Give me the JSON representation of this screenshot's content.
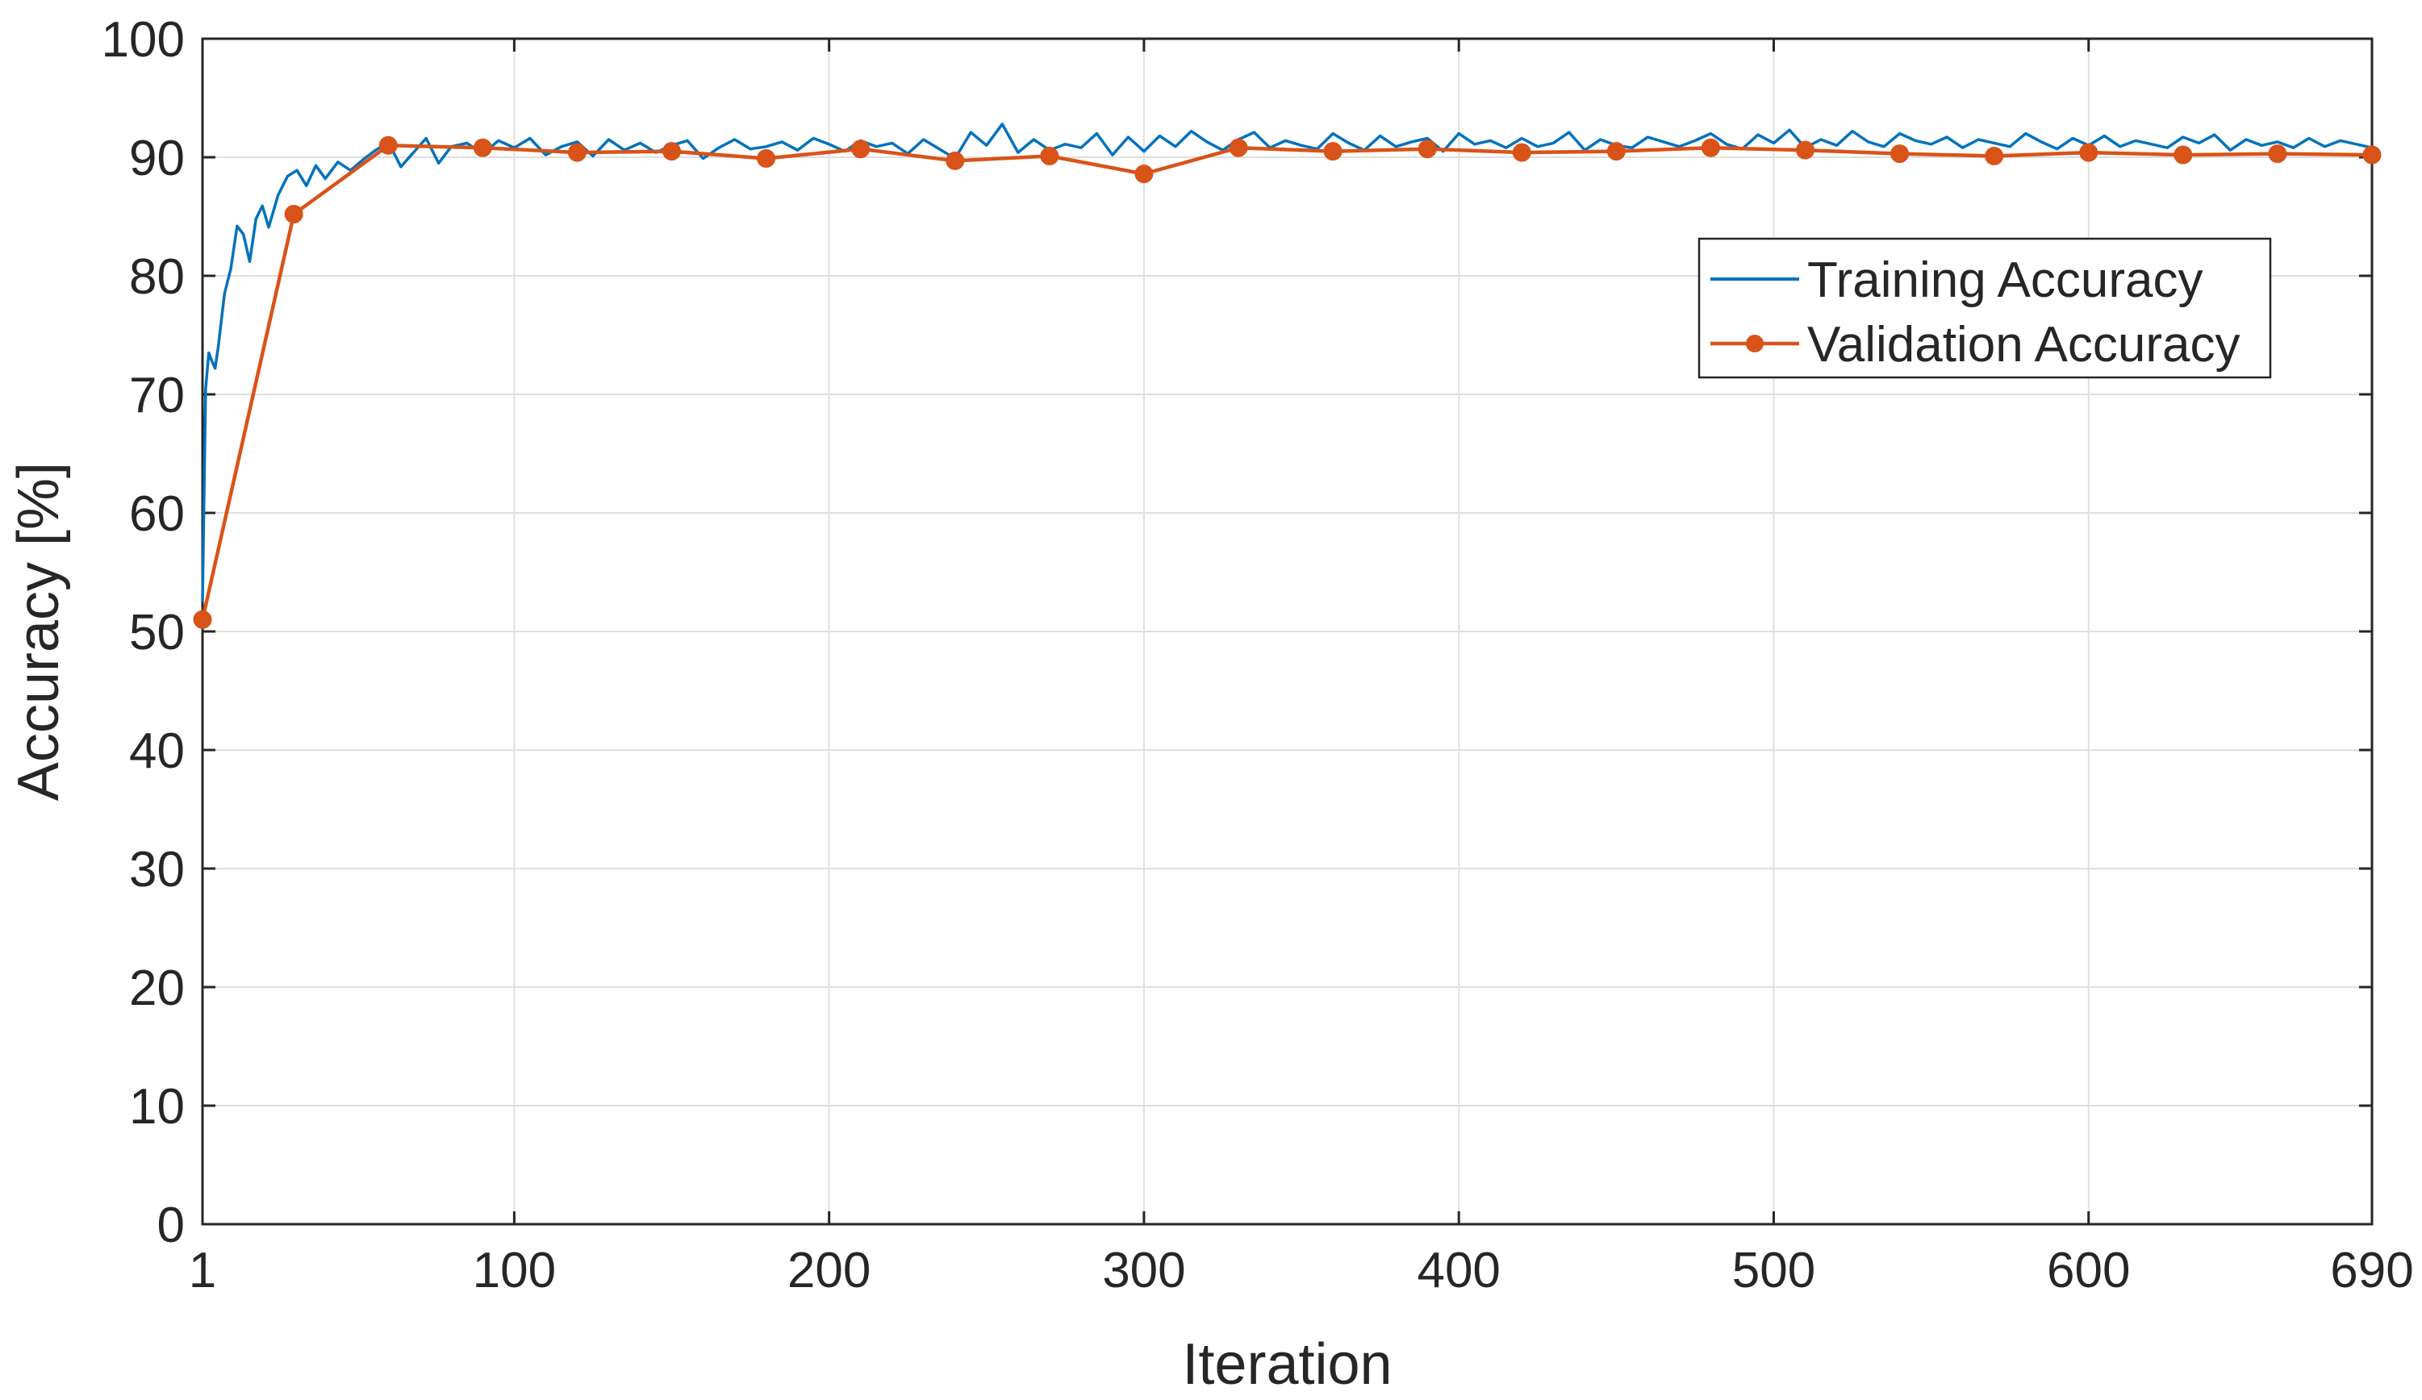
{
  "chart_data": {
    "type": "line",
    "xlabel": "Iteration",
    "ylabel": "Accuracy [%]",
    "xlim": [
      1,
      690
    ],
    "ylim": [
      0,
      100
    ],
    "x_ticks": [
      1,
      100,
      200,
      300,
      400,
      500,
      600,
      690
    ],
    "y_ticks": [
      0,
      10,
      20,
      30,
      40,
      50,
      60,
      70,
      80,
      90,
      100
    ],
    "grid": true,
    "legend_position": "upper-right",
    "series": [
      {
        "name": "Training Accuracy",
        "color": "#0072BD",
        "marker": "none",
        "x": [
          1,
          2,
          3,
          4,
          5,
          6,
          8,
          10,
          12,
          14,
          16,
          18,
          20,
          22,
          25,
          28,
          31,
          34,
          37,
          40,
          44,
          48,
          52,
          56,
          60,
          64,
          68,
          72,
          76,
          80,
          85,
          90,
          95,
          100,
          105,
          110,
          115,
          120,
          125,
          130,
          135,
          140,
          145,
          150,
          155,
          160,
          165,
          170,
          175,
          180,
          185,
          190,
          195,
          200,
          205,
          210,
          215,
          220,
          225,
          230,
          235,
          240,
          245,
          250,
          255,
          260,
          265,
          270,
          275,
          280,
          285,
          290,
          295,
          300,
          305,
          310,
          315,
          320,
          325,
          330,
          335,
          340,
          345,
          350,
          355,
          360,
          365,
          370,
          375,
          380,
          385,
          390,
          395,
          400,
          405,
          410,
          415,
          420,
          425,
          430,
          435,
          440,
          445,
          450,
          455,
          460,
          465,
          470,
          475,
          480,
          485,
          490,
          495,
          500,
          505,
          510,
          515,
          520,
          525,
          530,
          535,
          540,
          545,
          550,
          555,
          560,
          565,
          570,
          575,
          580,
          585,
          590,
          595,
          600,
          605,
          610,
          615,
          620,
          625,
          630,
          635,
          640,
          645,
          650,
          655,
          660,
          665,
          670,
          675,
          680,
          685,
          690
        ],
        "y": [
          52.5,
          70.5,
          73.5,
          72.8,
          72.2,
          74.0,
          78.5,
          80.6,
          84.2,
          83.5,
          81.2,
          84.8,
          85.9,
          84.1,
          86.8,
          88.4,
          88.9,
          87.6,
          89.3,
          88.2,
          89.6,
          88.9,
          89.8,
          90.6,
          91.3,
          89.2,
          90.4,
          91.6,
          89.5,
          90.9,
          91.2,
          90.3,
          91.4,
          90.8,
          91.6,
          90.2,
          90.9,
          91.3,
          90.1,
          91.5,
          90.6,
          91.2,
          90.4,
          91.0,
          91.4,
          89.9,
          90.8,
          91.5,
          90.7,
          90.9,
          91.3,
          90.6,
          91.6,
          91.1,
          90.5,
          91.4,
          90.9,
          91.2,
          90.3,
          91.5,
          90.7,
          89.9,
          92.1,
          91.0,
          92.8,
          90.4,
          91.5,
          90.6,
          91.1,
          90.8,
          92.0,
          90.2,
          91.7,
          90.5,
          91.8,
          90.9,
          92.2,
          91.3,
          90.6,
          91.5,
          92.1,
          90.8,
          91.4,
          91.0,
          90.7,
          92.0,
          91.2,
          90.6,
          91.8,
          90.9,
          91.3,
          91.6,
          90.5,
          92.0,
          91.1,
          91.4,
          90.8,
          91.6,
          90.9,
          91.2,
          92.1,
          90.6,
          91.5,
          91.0,
          90.8,
          91.7,
          91.3,
          90.9,
          91.4,
          92.0,
          91.1,
          90.7,
          91.9,
          91.2,
          92.3,
          90.8,
          91.5,
          91.0,
          92.2,
          91.3,
          90.9,
          92.0,
          91.4,
          91.1,
          91.7,
          90.8,
          91.5,
          91.2,
          90.9,
          92.0,
          91.3,
          90.7,
          91.6,
          91.0,
          91.8,
          90.9,
          91.4,
          91.1,
          90.8,
          91.7,
          91.2,
          91.9,
          90.6,
          91.5,
          91.0,
          91.3,
          90.8,
          91.6,
          90.9,
          91.4,
          91.1,
          90.8
        ]
      },
      {
        "name": "Validation Accuracy",
        "color": "#D95319",
        "marker": "circle",
        "x": [
          1,
          30,
          60,
          90,
          120,
          150,
          180,
          210,
          240,
          270,
          300,
          330,
          360,
          390,
          420,
          450,
          480,
          510,
          540,
          570,
          600,
          630,
          660,
          690
        ],
        "y": [
          51.0,
          85.2,
          91.0,
          90.8,
          90.4,
          90.5,
          89.9,
          90.7,
          89.7,
          90.1,
          88.6,
          90.8,
          90.5,
          90.7,
          90.4,
          90.5,
          90.8,
          90.6,
          90.3,
          90.1,
          90.4,
          90.2,
          90.3,
          90.2
        ]
      }
    ]
  }
}
